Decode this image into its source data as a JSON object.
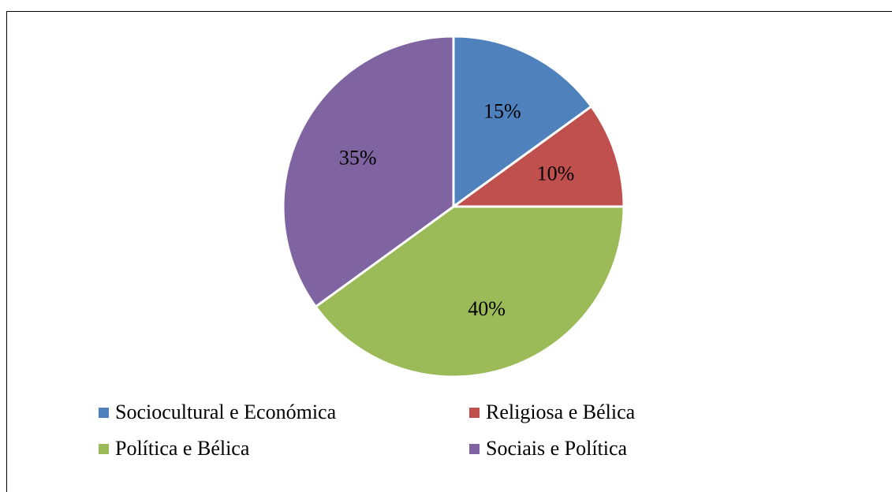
{
  "chart_data": {
    "type": "pie",
    "title": "",
    "categories": [
      "Sociocultural e Económica",
      "Religiosa e Bélica",
      "Política e Bélica",
      "Sociais e Política"
    ],
    "values": [
      15,
      10,
      40,
      35
    ],
    "labels": [
      "15%",
      "10%",
      "40%",
      "35%"
    ],
    "colors": [
      "#4F81BD",
      "#C0504D",
      "#9BBB59",
      "#8064A2"
    ],
    "legend_position": "bottom",
    "start_angle": "top, clockwise"
  },
  "legend": {
    "items": [
      {
        "label": "Sociocultural e Económica",
        "color": "#4F81BD"
      },
      {
        "label": "Religiosa e Bélica",
        "color": "#C0504D"
      },
      {
        "label": "Política e Bélica",
        "color": "#9BBB59"
      },
      {
        "label": "Sociais e Política",
        "color": "#8064A2"
      }
    ]
  }
}
